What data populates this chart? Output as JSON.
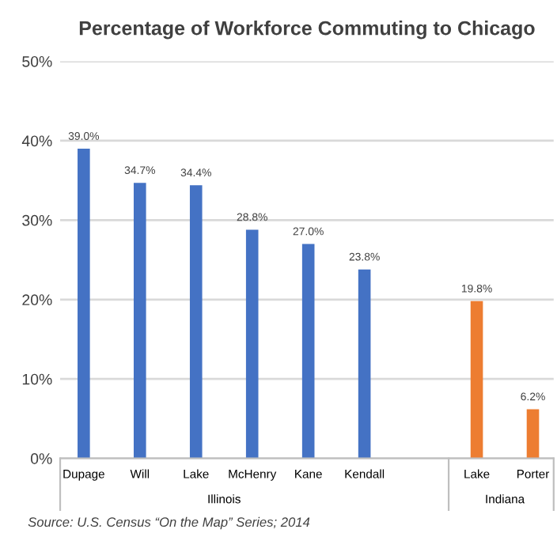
{
  "chart_data": {
    "type": "bar",
    "title": "Percentage of Workforce Commuting to Chicago",
    "categories": [
      "Dupage",
      "Will",
      "Lake",
      "McHenry",
      "Kane",
      "Kendall",
      null,
      "Lake",
      "Porter"
    ],
    "values": [
      39.0,
      34.7,
      34.4,
      28.8,
      27.0,
      23.8,
      null,
      19.8,
      6.2
    ],
    "colors": [
      "#4472c4",
      "#4472c4",
      "#4472c4",
      "#4472c4",
      "#4472c4",
      "#4472c4",
      "#4472c4",
      "#ed7d31",
      "#ed7d31"
    ],
    "value_labels": [
      "39.0%",
      "34.7%",
      "34.4%",
      "28.8%",
      "27.0%",
      "23.8%",
      null,
      "19.8%",
      "6.2%"
    ],
    "ylim": [
      0,
      50
    ],
    "yticks": [
      {
        "value": 0,
        "label": "0%"
      },
      {
        "value": 10,
        "label": "10%"
      },
      {
        "value": 20,
        "label": "20%"
      },
      {
        "value": 30,
        "label": "30%"
      },
      {
        "value": 40,
        "label": "40%"
      },
      {
        "value": 50,
        "label": "50%"
      }
    ],
    "grid": "y",
    "annotations": [
      "Illinois",
      "Indiana",
      "Source: U.S. Census “On the Map” Series; 2014"
    ]
  }
}
